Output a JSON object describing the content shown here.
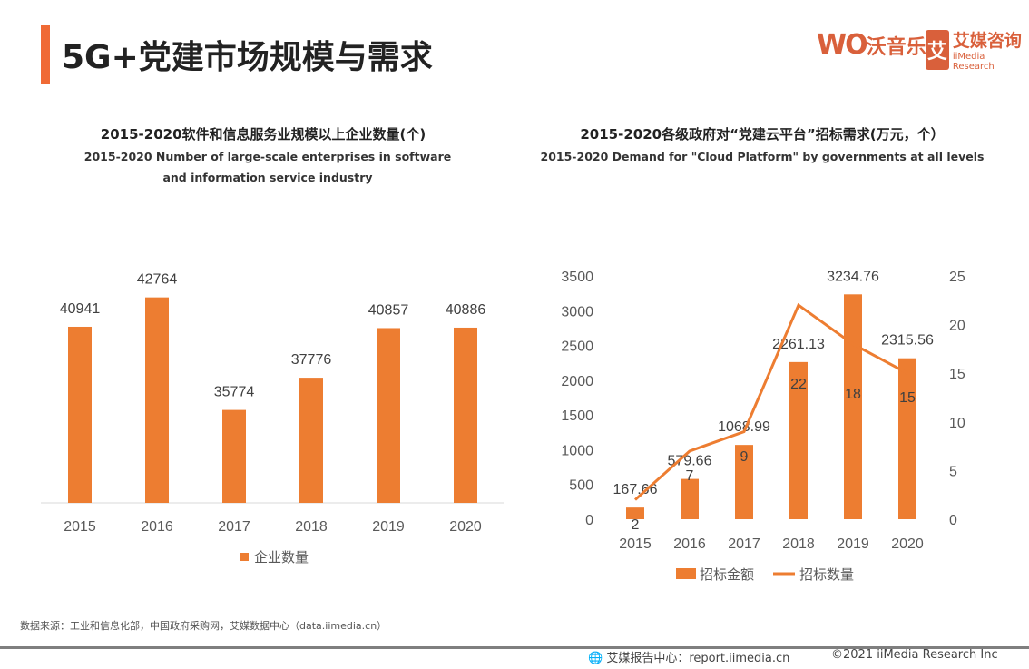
{
  "header": {
    "title": "5G+党建市场规模与需求"
  },
  "logos": {
    "womusic": "WO沃音乐 WoMusic",
    "iimedia": "艾媒咨询 iiMedia Research"
  },
  "colors": {
    "accent": "#f06a35",
    "bar": "#ed7d31"
  },
  "chart_data": [
    {
      "type": "bar",
      "title": "2015-2020软件和信息服务业规模以上企业数量(个)",
      "subtitle": "2015-2020 Number of large-scale enterprises in software and information service industry",
      "categories": [
        "2015",
        "2016",
        "2017",
        "2018",
        "2019",
        "2020"
      ],
      "series": [
        {
          "name": "企业数量",
          "values": [
            40941,
            42764,
            35774,
            37776,
            40857,
            40886
          ]
        }
      ],
      "ylim": [
        30000,
        45000
      ],
      "legend": "bottom",
      "grid": false
    },
    {
      "type": "bar+line",
      "title": "2015-2020各级政府对“党建云平台”招标需求(万元，个）",
      "subtitle": "2015-2020 Demand for \"Cloud Platform\" by governments at all levels",
      "categories": [
        "2015",
        "2016",
        "2017",
        "2018",
        "2019",
        "2020"
      ],
      "series": [
        {
          "name": "招标金额",
          "type": "bar",
          "axis": "left",
          "values": [
            167.66,
            579.66,
            1068.99,
            2261.13,
            3234.76,
            2315.56
          ]
        },
        {
          "name": "招标数量",
          "type": "line",
          "axis": "right",
          "values": [
            2,
            7,
            9,
            22,
            18,
            15
          ]
        }
      ],
      "ylim_left": [
        0,
        3500
      ],
      "yticks_left": [
        "0",
        "500",
        "1000",
        "1500",
        "2000",
        "2500",
        "3000",
        "3500"
      ],
      "ylim_right": [
        0,
        25
      ],
      "yticks_right": [
        "0",
        "5",
        "10",
        "15",
        "20",
        "25"
      ],
      "legend": "bottom",
      "grid": false
    }
  ],
  "footer": {
    "source": "数据来源：工业和信息化部，中国政府采购网，艾媒数据中心（data.iimedia.cn）",
    "report": "艾媒报告中心：report.iimedia.cn",
    "copyright": "©2021  iiMedia Research  Inc"
  }
}
